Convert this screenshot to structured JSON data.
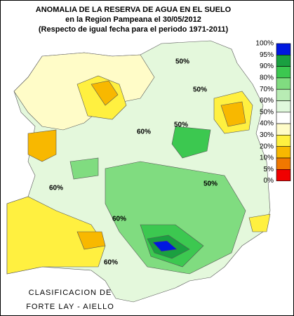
{
  "header": {
    "title": "ANOMALIA DE LA RESERVA DE AGUA EN EL SUELO",
    "subtitle": "en la Region Pampeana el  30/05/2012",
    "note": "(Respecto de igual fecha para el periodo 1971-2011)"
  },
  "legend": {
    "labels": [
      "100%",
      "95%",
      "90%",
      "80%",
      "70%",
      "60%",
      "50%",
      "40%",
      "30%",
      "20%",
      "10%",
      "5%",
      "0%"
    ],
    "colors": [
      "#0018e0",
      "#1aa040",
      "#3cc850",
      "#80dc80",
      "#b8ecb4",
      "#e0f8dc",
      "#ffffff",
      "#fffcc8",
      "#fff040",
      "#f8b800",
      "#f07800",
      "#f00000"
    ]
  },
  "contour_labels": [
    "50%",
    "50%",
    "50%",
    "60%",
    "60%",
    "60%",
    "50%",
    "60%"
  ],
  "footer": [
    "CLASIFICACION DE",
    "FORTE LAY - AIELLO"
  ]
}
